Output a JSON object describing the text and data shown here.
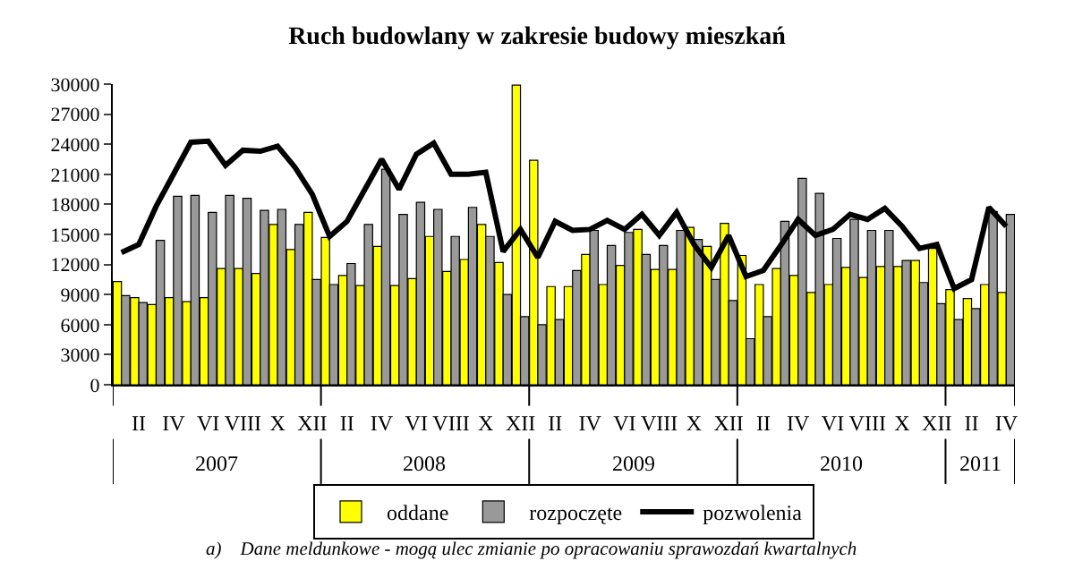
{
  "chart_data": {
    "type": "bar",
    "title": "Ruch budowlany w zakresie budowy mieszkań",
    "categories": [
      null,
      "II",
      null,
      "IV",
      null,
      "VI",
      null,
      "VIII",
      null,
      "X",
      null,
      "XII",
      null,
      "II",
      null,
      "IV",
      null,
      "VI",
      null,
      "VIII",
      null,
      "X",
      null,
      "XII",
      null,
      "II",
      null,
      "IV",
      null,
      "VI",
      null,
      "VIII",
      null,
      "X",
      null,
      "XII",
      null,
      "II",
      null,
      "IV",
      null,
      "VI",
      null,
      "VIII",
      null,
      "X",
      null,
      "XII",
      null,
      "II",
      null,
      "IV"
    ],
    "series": [
      {
        "name": "oddane",
        "color": "#ffff00",
        "values": [
          10300,
          8700,
          8000,
          8700,
          8300,
          8700,
          11600,
          11600,
          11100,
          16000,
          13500,
          17200,
          14700,
          10900,
          9900,
          13800,
          9900,
          10600,
          14800,
          11300,
          12500,
          16000,
          12200,
          29900,
          22400,
          9800,
          9800,
          13000,
          10000,
          11900,
          15500,
          11500,
          11500,
          15700,
          13800,
          16100,
          12900,
          10000,
          11600,
          10900,
          9200,
          10000,
          11700,
          10700,
          11800,
          11800,
          12400,
          13600,
          9500,
          8600,
          10000,
          9200
        ]
      },
      {
        "name": "rozpoczęte",
        "color": "#999999",
        "values": [
          8900,
          8200,
          14400,
          18800,
          18900,
          17200,
          18900,
          18600,
          17400,
          17500,
          16000,
          10500,
          10000,
          12100,
          16000,
          21500,
          17000,
          18200,
          17500,
          14800,
          17700,
          14800,
          9000,
          6800,
          6000,
          6500,
          11400,
          15400,
          13900,
          15200,
          13000,
          13900,
          15400,
          14500,
          10500,
          8400,
          4600,
          6800,
          16300,
          20600,
          19100,
          14600,
          16500,
          15400,
          15400,
          12400,
          10200,
          8100,
          6500,
          7600,
          17300,
          17000
        ]
      },
      {
        "name": "pozwolenia",
        "type": "line",
        "color": "#000000",
        "values": [
          13200,
          14000,
          17800,
          21000,
          24200,
          24300,
          21900,
          23400,
          23300,
          23800,
          21700,
          19000,
          14800,
          16300,
          19400,
          22500,
          19500,
          23000,
          24100,
          21000,
          21000,
          21200,
          13300,
          15500,
          12700,
          16300,
          15400,
          15500,
          16400,
          15500,
          17000,
          14900,
          17200,
          14000,
          11700,
          14900,
          10800,
          11400,
          13900,
          16500,
          14900,
          15500,
          17000,
          16500,
          17600,
          15800,
          13600,
          14000,
          9600,
          10500,
          17700,
          15800
        ]
      }
    ],
    "ylim": [
      0,
      30000
    ],
    "yticks": [
      0,
      3000,
      6000,
      9000,
      12000,
      15000,
      18000,
      21000,
      24000,
      27000,
      30000
    ],
    "legend": "bottom",
    "marker": "none",
    "line_style": "solid",
    "annotations": [
      "2007",
      "2008",
      "2009",
      "2010",
      "2011",
      "a)    Dane meldunkowe - mogą ulec zmianie po opracowaniu sprawozdań kwartalnych"
    ]
  }
}
